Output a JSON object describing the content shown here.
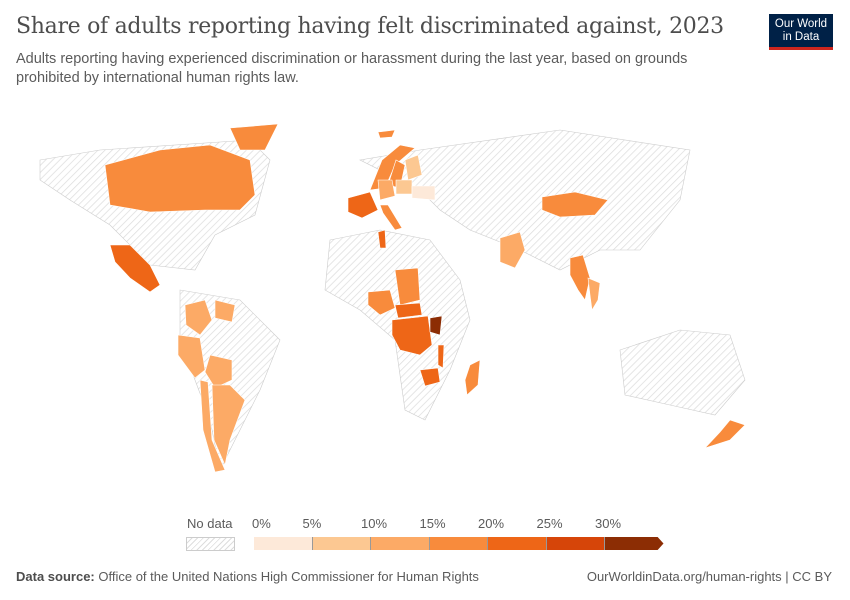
{
  "header": {
    "title": "Share of adults reporting having felt discriminated against, 2023",
    "subtitle": "Adults reporting having experienced discrimination or harassment during the last year, based on grounds prohibited by international human rights law.",
    "logo": "Our World in Data"
  },
  "legend": {
    "no_data": "No data",
    "ticks": [
      "0%",
      "5%",
      "10%",
      "15%",
      "20%",
      "25%",
      "30%"
    ],
    "colors": [
      "#fde9d9",
      "#fcc892",
      "#fcaa66",
      "#f88b3c",
      "#ee6617",
      "#d64509",
      "#8c2d04"
    ],
    "no_data_color": "#e0e0e0"
  },
  "map": {
    "regions": [
      {
        "name": "Canada",
        "bin": 3
      },
      {
        "name": "Mexico",
        "bin": 4
      },
      {
        "name": "Colombia",
        "bin": 2
      },
      {
        "name": "Venezuela",
        "bin": 2
      },
      {
        "name": "Peru",
        "bin": 2
      },
      {
        "name": "Paraguay",
        "bin": 2
      },
      {
        "name": "Chile",
        "bin": 2
      },
      {
        "name": "Argentina",
        "bin": 2
      },
      {
        "name": "Greenland",
        "bin": 3
      },
      {
        "name": "Iceland",
        "bin": 3
      },
      {
        "name": "Norway",
        "bin": 3
      },
      {
        "name": "Sweden",
        "bin": 3
      },
      {
        "name": "Finland",
        "bin": 1
      },
      {
        "name": "France",
        "bin": 4
      },
      {
        "name": "Germany",
        "bin": 2
      },
      {
        "name": "Poland",
        "bin": 1
      },
      {
        "name": "Ukraine",
        "bin": 0
      },
      {
        "name": "Italy",
        "bin": 3
      },
      {
        "name": "Tunisia",
        "bin": 4
      },
      {
        "name": "Nigeria",
        "bin": 3
      },
      {
        "name": "Sudan",
        "bin": 3
      },
      {
        "name": "Central African Republic",
        "bin": 4
      },
      {
        "name": "DR Congo",
        "bin": 4
      },
      {
        "name": "Burundi",
        "bin": 6
      },
      {
        "name": "Malawi",
        "bin": 4
      },
      {
        "name": "Zimbabwe",
        "bin": 4
      },
      {
        "name": "Madagascar",
        "bin": 3
      },
      {
        "name": "Pakistan",
        "bin": 2
      },
      {
        "name": "Mongolia",
        "bin": 3
      },
      {
        "name": "Myanmar",
        "bin": 3
      },
      {
        "name": "Thailand",
        "bin": 2
      },
      {
        "name": "New Zealand",
        "bin": 3
      }
    ]
  },
  "footer": {
    "source_label": "Data source:",
    "source": "Office of the United Nations High Commissioner for Human Rights",
    "link": "OurWorldinData.org/human-rights | CC BY"
  }
}
